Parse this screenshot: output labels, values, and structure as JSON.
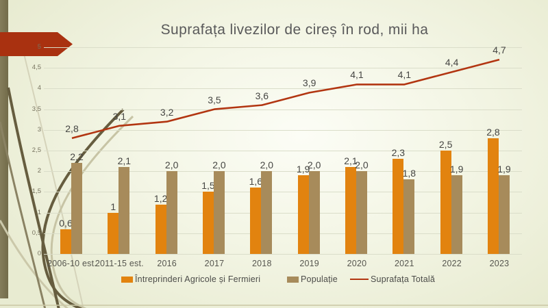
{
  "slide": {
    "title": "Suprafața livezilor de cireș în rod, mii ha"
  },
  "colors": {
    "bar_agro": "#E2830F",
    "bar_pop": "#A78B5B",
    "line_total": "#B23511",
    "arrow_red": "#A93110",
    "gridline": "#DADDC9",
    "stripe_olive": "#7B744F"
  },
  "chart_data": {
    "type": "combo-bar-line",
    "title": "Suprafața livezilor de cireș în rod, mii ha",
    "categories": [
      "2006-10 est.",
      "2011-15 est.",
      "2016",
      "2017",
      "2018",
      "2019",
      "2020",
      "2021",
      "2022",
      "2023"
    ],
    "series": [
      {
        "name": "Întreprinderi Agricole și Fermieri",
        "type": "bar",
        "color": "#E2830F",
        "values": [
          0.6,
          1,
          1.2,
          1.5,
          1.6,
          1.9,
          2.1,
          2.3,
          2.5,
          2.8
        ],
        "labels": [
          "0,6",
          "1",
          "1,2",
          "1,5",
          "1,6",
          "1,9",
          "2,1",
          "2,3",
          "2,5",
          "2,8"
        ]
      },
      {
        "name": "Populație",
        "type": "bar",
        "color": "#A78B5B",
        "values": [
          2.2,
          2.1,
          2.0,
          2.0,
          2.0,
          2.0,
          2.0,
          1.8,
          1.9,
          1.9
        ],
        "labels": [
          "2,2",
          "2,1",
          "2,0",
          "2,0",
          "2,0",
          "2,0",
          "2,0",
          "1,8",
          "1,9",
          "1,9"
        ]
      },
      {
        "name": "Suprafața Totală",
        "type": "line",
        "color": "#B23511",
        "values": [
          2.8,
          3.1,
          3.2,
          3.5,
          3.6,
          3.9,
          4.1,
          4.1,
          4.4,
          4.7
        ],
        "labels": [
          "2,8",
          "3,1",
          "3,2",
          "3,5",
          "3,6",
          "3,9",
          "4,1",
          "4,1",
          "4,4",
          "4,7"
        ]
      }
    ],
    "y_axis": {
      "min": 0,
      "max": 5,
      "step": 0.5,
      "tick_labels": [
        "0",
        "0,5",
        "1",
        "1,5",
        "2",
        "2,5",
        "3",
        "3,5",
        "4",
        "4,5",
        "5"
      ]
    },
    "grid": true,
    "legend_position": "bottom"
  }
}
